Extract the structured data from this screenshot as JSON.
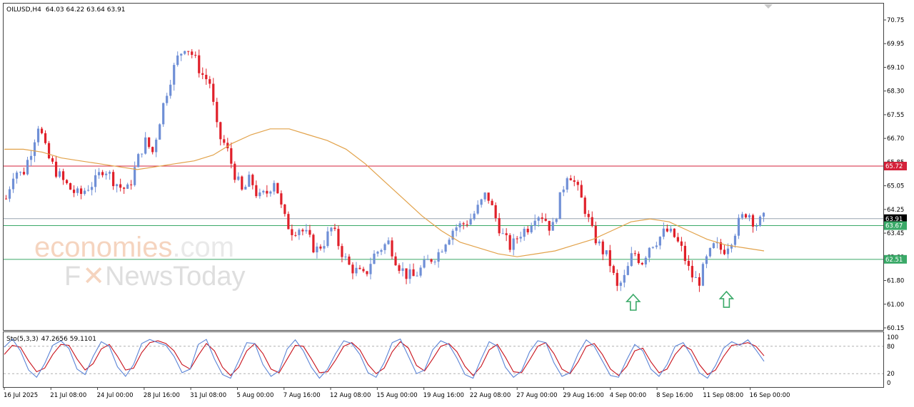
{
  "header": {
    "symbol": "OILUSD,H4",
    "ohlc": "64.03 64.22 63.64 63.91"
  },
  "watermark": {
    "brand": "economies",
    "brand_suffix": ".com",
    "sub_brand_a": "F",
    "sub_brand_b": "NewsToday"
  },
  "colors": {
    "bull": "#6f8fd6",
    "bear": "#e0202a",
    "ma": "#e2a24a",
    "resistance": "#d4223a",
    "support": "#3aa968",
    "stoch_main": "#5b84d6",
    "stoch_signal": "#c8101a",
    "arrow": "#3aa968"
  },
  "chart_data": [
    {
      "type": "candlestick",
      "symbol": "OILUSD",
      "timeframe": "H4",
      "ylim": [
        60.15,
        70.75
      ],
      "y_ticks": [
        "70.75",
        "69.95",
        "69.10",
        "68.30",
        "67.55",
        "66.70",
        "65.85",
        "65.05",
        "64.25",
        "63.45",
        "62.60",
        "61.80",
        "61.00",
        "60.15"
      ],
      "x_tick_labels": [
        "16 Jul 2025",
        "21 Jul 08:00",
        "24 Jul 00:00",
        "28 Jul 16:00",
        "31 Jul 08:00",
        "5 Aug 00:00",
        "7 Aug 16:00",
        "12 Aug 08:00",
        "15 Aug 00:00",
        "19 Aug 16:00",
        "22 Aug 08:00",
        "27 Aug 00:00",
        "29 Aug 16:00",
        "4 Sep 00:00",
        "8 Sep 16:00",
        "11 Sep 08:00",
        "16 Sep 00:00"
      ],
      "close_path": [
        64.6,
        65.6,
        65.4,
        66.2,
        67.2,
        66.1,
        65.6,
        65.2,
        64.9,
        64.7,
        65.0,
        65.2,
        65.7,
        65.3,
        65.0,
        64.9,
        65.8,
        66.6,
        66.2,
        67.5,
        68.6,
        69.4,
        69.9,
        69.5,
        68.9,
        68.6,
        66.8,
        66.4,
        65.5,
        64.8,
        65.3,
        64.6,
        64.8,
        65.3,
        64.0,
        63.5,
        63.6,
        63.3,
        62.8,
        63.1,
        63.6,
        62.9,
        62.3,
        62.1,
        61.9,
        62.6,
        62.9,
        63.1,
        62.4,
        62.0,
        61.9,
        62.2,
        62.5,
        62.7,
        63.2,
        63.6,
        63.7,
        63.9,
        64.3,
        64.8,
        64.0,
        63.3,
        62.9,
        63.4,
        63.6,
        64.1,
        64.0,
        63.5,
        64.6,
        65.6,
        65.0,
        64.3,
        63.4,
        62.9,
        62.5,
        61.5,
        61.9,
        62.8,
        62.4,
        63.0,
        63.2,
        63.5,
        63.3,
        62.8,
        62.0,
        61.7,
        62.5,
        63.0,
        62.8,
        63.2,
        63.8,
        64.2,
        63.7,
        63.9
      ],
      "ma_curve": [
        66.3,
        66.3,
        66.2,
        66.0,
        65.9,
        65.8,
        65.7,
        65.6,
        65.7,
        65.8,
        65.9,
        66.1,
        66.5,
        66.8,
        67.0,
        67.0,
        66.8,
        66.6,
        66.3,
        65.8,
        65.2,
        64.6,
        64.0,
        63.5,
        63.1,
        62.9,
        62.7,
        62.6,
        62.7,
        62.8,
        63.0,
        63.2,
        63.5,
        63.8,
        63.9,
        63.8,
        63.5,
        63.2,
        63.0,
        62.9,
        62.8
      ],
      "horizontal_lines": [
        {
          "value": 65.72,
          "label": "65.72",
          "kind": "resistance"
        },
        {
          "value": 63.91,
          "label": "63.91",
          "kind": "current"
        },
        {
          "value": 63.67,
          "label": "63.67",
          "kind": "support"
        },
        {
          "value": 62.51,
          "label": "62.51",
          "kind": "support"
        }
      ],
      "annotations": [
        {
          "type": "up-arrow",
          "near": "4 Sep 00:00",
          "value": 61.3
        },
        {
          "type": "up-arrow",
          "near": "11 Sep 08:00",
          "value": 61.4
        }
      ]
    },
    {
      "type": "line",
      "indicator": "Sto(5,3,3)",
      "values_text": "47.2656 59.1101",
      "ylim": [
        0,
        100
      ],
      "y_ticks": [
        "100",
        "80",
        "20",
        "0"
      ],
      "levels": [
        80,
        20
      ],
      "series": [
        {
          "role": "main",
          "values": [
            78,
            96,
            70,
            28,
            12,
            42,
            82,
            92,
            75,
            30,
            18,
            58,
            90,
            80,
            35,
            14,
            40,
            86,
            95,
            88,
            82,
            58,
            22,
            30,
            84,
            95,
            52,
            18,
            10,
            48,
            88,
            86,
            40,
            14,
            26,
            74,
            94,
            70,
            34,
            10,
            30,
            64,
            92,
            86,
            62,
            22,
            12,
            44,
            88,
            96,
            58,
            20,
            28,
            72,
            92,
            84,
            54,
            18,
            10,
            52,
            90,
            80,
            34,
            12,
            26,
            68,
            92,
            88,
            44,
            14,
            22,
            64,
            94,
            80,
            48,
            16,
            12,
            50,
            84,
            70,
            30,
            14,
            40,
            80,
            88,
            60,
            22,
            10,
            38,
            76,
            90,
            82,
            94,
            72,
            47
          ]
        },
        {
          "role": "signal",
          "values": [
            62,
            82,
            78,
            48,
            24,
            32,
            62,
            84,
            82,
            52,
            28,
            42,
            74,
            84,
            58,
            28,
            32,
            66,
            88,
            92,
            86,
            70,
            40,
            30,
            60,
            86,
            70,
            34,
            16,
            34,
            70,
            86,
            64,
            30,
            22,
            52,
            82,
            80,
            52,
            22,
            24,
            50,
            80,
            88,
            72,
            40,
            20,
            32,
            68,
            90,
            76,
            38,
            26,
            52,
            80,
            86,
            68,
            36,
            16,
            36,
            72,
            84,
            56,
            24,
            22,
            50,
            80,
            88,
            64,
            30,
            20,
            46,
            80,
            86,
            62,
            30,
            16,
            36,
            70,
            76,
            46,
            22,
            30,
            62,
            82,
            72,
            40,
            18,
            28,
            58,
            82,
            84,
            88,
            80,
            59
          ]
        }
      ]
    }
  ]
}
